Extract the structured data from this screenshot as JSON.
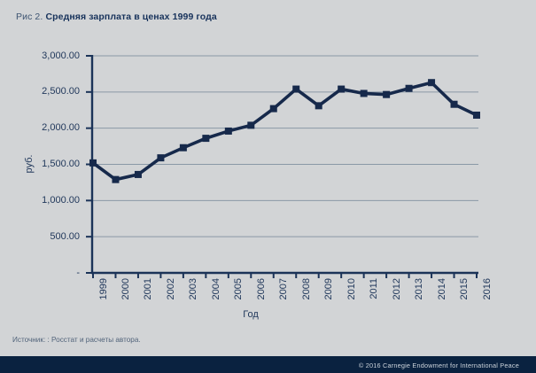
{
  "title": {
    "prefix": "Рис 2.",
    "main": "Средняя зарплата в ценах 1999 года"
  },
  "chart_data": {
    "type": "line",
    "title": "Средняя зарплата в ценах 1999 года",
    "xlabel": "Год",
    "ylabel": "руб.",
    "categories": [
      "1999",
      "2000",
      "2001",
      "2002",
      "2003",
      "2004",
      "2005",
      "2006",
      "2007",
      "2008",
      "2009",
      "2010",
      "2011",
      "2012",
      "2013",
      "2014",
      "2015",
      "2016"
    ],
    "series": [
      {
        "name": "Средняя зарплата в ценах 1999 года",
        "values": [
          1520,
          1290,
          1360,
          1590,
          1730,
          1860,
          1960,
          2040,
          2270,
          2540,
          2310,
          2540,
          2480,
          2465,
          2550,
          2630,
          2330,
          2180
        ]
      }
    ],
    "ylim": [
      0,
      3000
    ],
    "y_tick_interval": 500,
    "y_tick_labels": [
      "-",
      "500.00",
      "1,000.00",
      "1,500.00",
      "2,000.00",
      "2,500.00",
      "3,000.00"
    ],
    "grid": true,
    "legend": "none",
    "marker": "square",
    "line_color": "#16294b",
    "marker_color": "#16294b",
    "axis_color": "#1b3358",
    "gridline_color": "#8a98a6"
  },
  "source_note": "Источник: : Росстат и расчеты автора.",
  "footer": {
    "copyright": "© 2016 Carnegie Endowment for International Peace"
  },
  "colors": {
    "background": "#d2d4d6",
    "footer_bar": "#0a2240",
    "title_text": "#17325b"
  }
}
